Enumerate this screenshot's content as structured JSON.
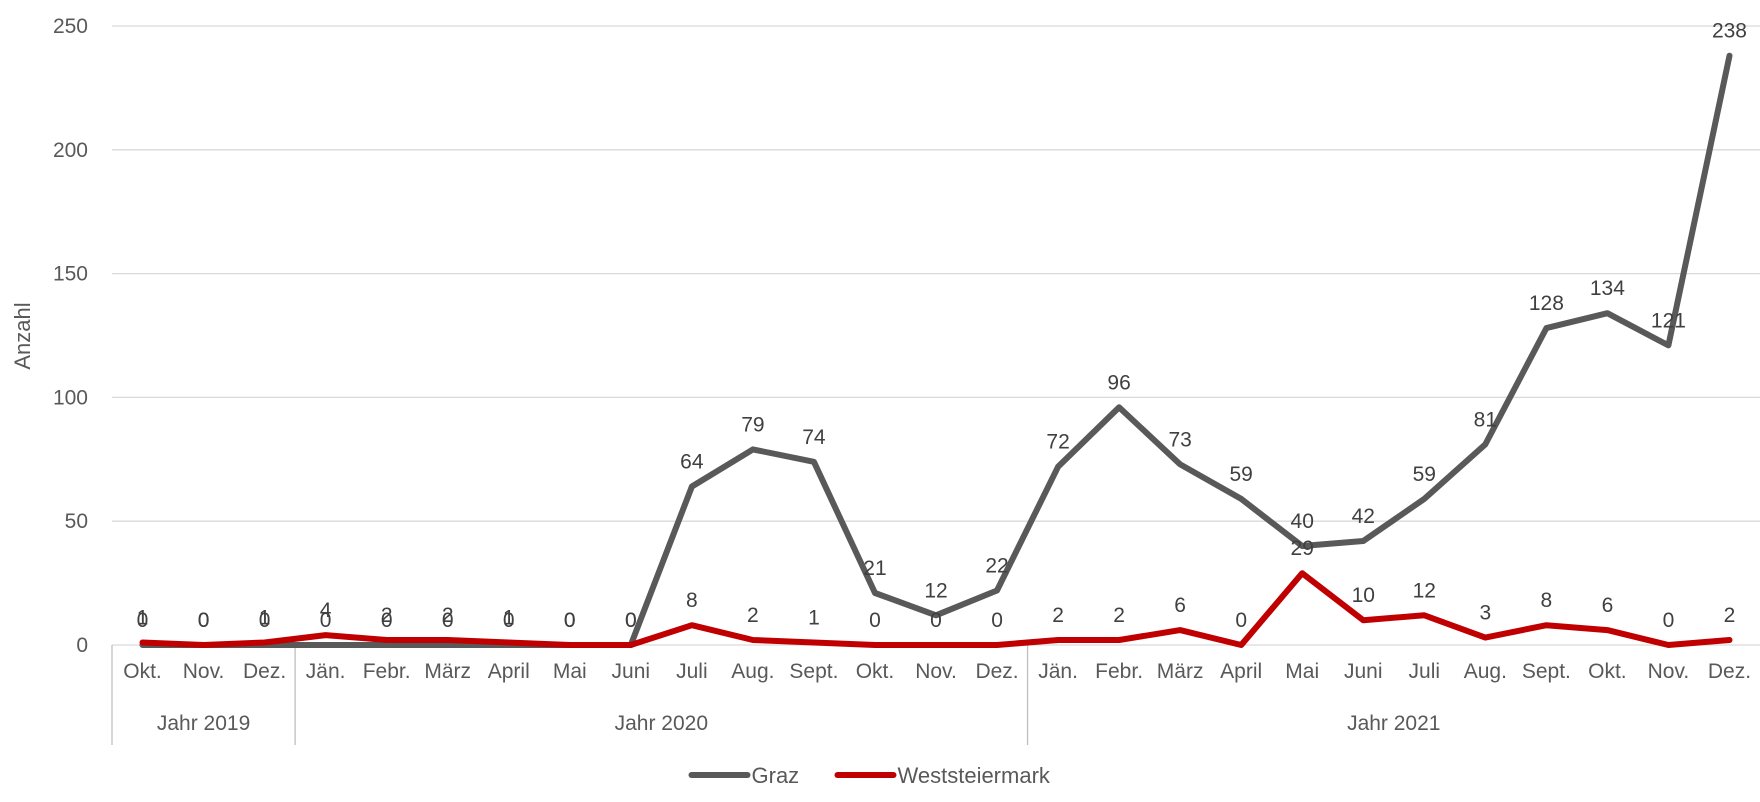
{
  "chart_data": {
    "type": "line",
    "title": "",
    "ylabel": "Anzahl",
    "xlabel": "",
    "ylim": [
      0,
      250
    ],
    "yticks": [
      0,
      50,
      100,
      150,
      200,
      250
    ],
    "grid": true,
    "legend_position": "bottom",
    "categories": [
      "Okt.",
      "Nov.",
      "Dez.",
      "Jän.",
      "Febr.",
      "März",
      "April",
      "Mai",
      "Juni",
      "Juli",
      "Aug.",
      "Sept.",
      "Okt.",
      "Nov.",
      "Dez.",
      "Jän.",
      "Febr.",
      "März",
      "April",
      "Mai",
      "Juni",
      "Juli",
      "Aug.",
      "Sept.",
      "Okt.",
      "Nov.",
      "Dez."
    ],
    "groups": [
      {
        "label": "Jahr 2019",
        "start": 0,
        "end": 2
      },
      {
        "label": "Jahr 2020",
        "start": 3,
        "end": 14
      },
      {
        "label": "Jahr 2021",
        "start": 15,
        "end": 26
      }
    ],
    "series": [
      {
        "name": "Graz",
        "color": "#595959",
        "values": [
          0,
          0,
          0,
          0,
          0,
          0,
          0,
          0,
          0,
          64,
          79,
          74,
          21,
          12,
          22,
          72,
          96,
          73,
          59,
          40,
          42,
          59,
          81,
          128,
          134,
          121,
          238
        ]
      },
      {
        "name": "Weststeiermark",
        "color": "#c00000",
        "values": [
          1,
          0,
          1,
          4,
          2,
          2,
          1,
          0,
          0,
          8,
          2,
          1,
          0,
          0,
          0,
          2,
          2,
          6,
          0,
          29,
          10,
          12,
          3,
          8,
          6,
          0,
          2
        ]
      }
    ]
  }
}
